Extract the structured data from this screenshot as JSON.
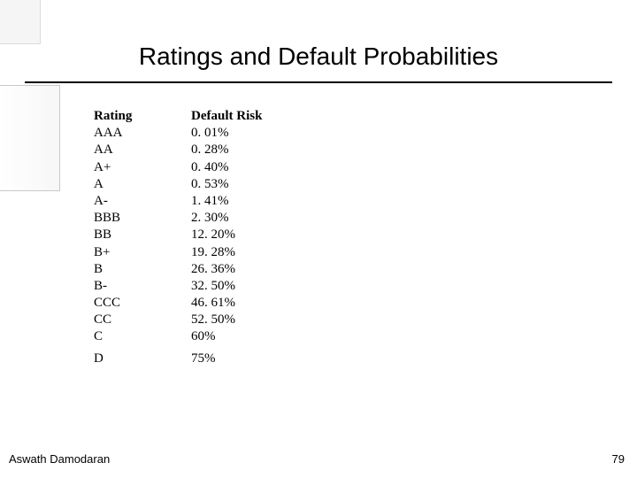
{
  "title": "Ratings and Default Probabilities",
  "table": {
    "headers": {
      "rating": "Rating",
      "risk": "Default Risk"
    },
    "rows": [
      {
        "rating": "AAA",
        "risk": "0. 01%"
      },
      {
        "rating": "AA",
        "risk": "0. 28%"
      },
      {
        "rating": "A+",
        "risk": "0. 40%"
      },
      {
        "rating": "A",
        "risk": "0. 53%"
      },
      {
        "rating": "A-",
        "risk": "1. 41%"
      },
      {
        "rating": "BBB",
        "risk": "2. 30%"
      },
      {
        "rating": "BB",
        "risk": "12. 20%"
      },
      {
        "rating": "B+",
        "risk": "19. 28%"
      },
      {
        "rating": "B",
        "risk": "26. 36%"
      },
      {
        "rating": "B-",
        "risk": "32. 50%"
      },
      {
        "rating": "CCC",
        "risk": "46. 61%"
      },
      {
        "rating": "CC",
        "risk": "52. 50%"
      },
      {
        "rating": "C",
        "risk": "60%"
      },
      {
        "rating": "D",
        "risk": "75%"
      }
    ],
    "separator_before_index": 13
  },
  "footer": {
    "author": "Aswath Damodaran",
    "page": "79"
  }
}
